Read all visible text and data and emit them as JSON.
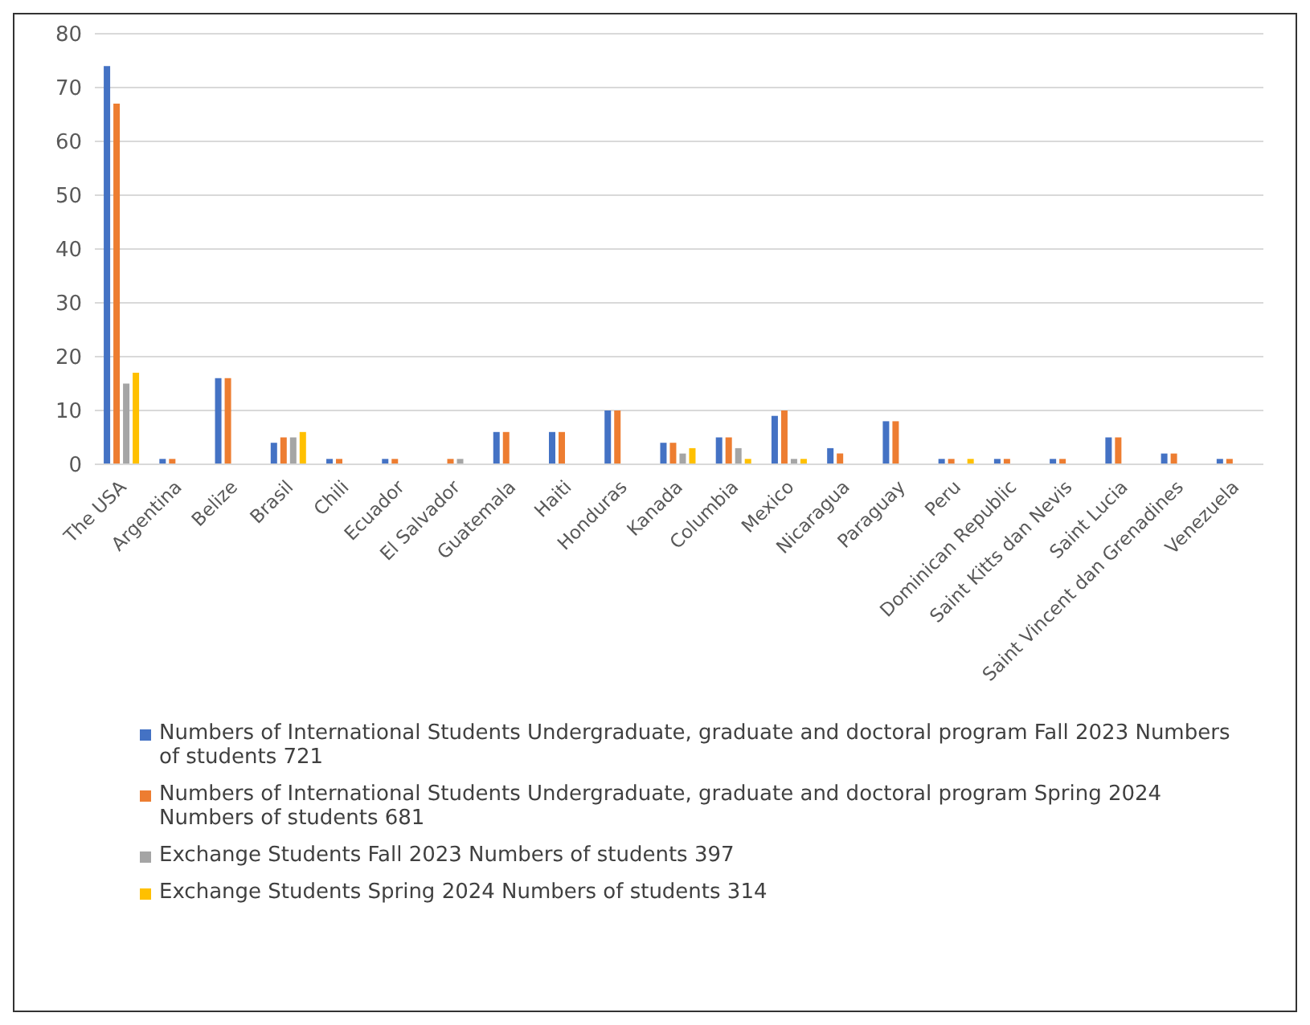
{
  "chart_data": {
    "type": "bar",
    "categories": [
      "The USA",
      "Argentina",
      "Belize",
      "Brasil",
      "Chili",
      "Ecuador",
      "El Salvador",
      "Guatemala",
      "Haiti",
      "Honduras",
      "Kanada",
      "Columbia",
      "Mexico",
      "Nicaragua",
      "Paraguay",
      "Peru",
      "Dominican Republic",
      "Saint Kitts dan Nevis",
      "Saint Lucia",
      "Saint Vincent dan Grenadines",
      "Venezuela"
    ],
    "series": [
      {
        "name": "Numbers of International Students Undergraduate, graduate and doctoral program Fall 2023 Numbers of students 721",
        "color": "#4472c4",
        "values": [
          74,
          1,
          16,
          4,
          1,
          1,
          null,
          6,
          6,
          10,
          4,
          5,
          9,
          3,
          8,
          1,
          1,
          1,
          5,
          2,
          1
        ]
      },
      {
        "name": "Numbers of International Students Undergraduate, graduate and doctoral program Spring 2024 Numbers of students 681",
        "color": "#ed7d31",
        "values": [
          67,
          1,
          16,
          5,
          1,
          1,
          1,
          6,
          6,
          10,
          4,
          5,
          10,
          2,
          8,
          1,
          1,
          1,
          5,
          2,
          1
        ]
      },
      {
        "name": "Exchange Students Fall 2023 Numbers of students 397",
        "color": "#a5a5a5",
        "values": [
          15,
          null,
          null,
          5,
          null,
          null,
          1,
          null,
          null,
          null,
          2,
          3,
          1,
          null,
          null,
          null,
          null,
          null,
          null,
          null,
          null
        ]
      },
      {
        "name": "Exchange Students Spring 2024 Numbers of students 314",
        "color": "#ffc000",
        "values": [
          17,
          null,
          null,
          6,
          null,
          null,
          null,
          null,
          null,
          null,
          3,
          1,
          1,
          null,
          null,
          1,
          null,
          null,
          null,
          null,
          null
        ]
      }
    ],
    "ylim": [
      0,
      80
    ],
    "yticks": [
      0,
      10,
      20,
      30,
      40,
      50,
      60,
      70,
      80
    ],
    "grid": "y",
    "legend": "bottom"
  }
}
